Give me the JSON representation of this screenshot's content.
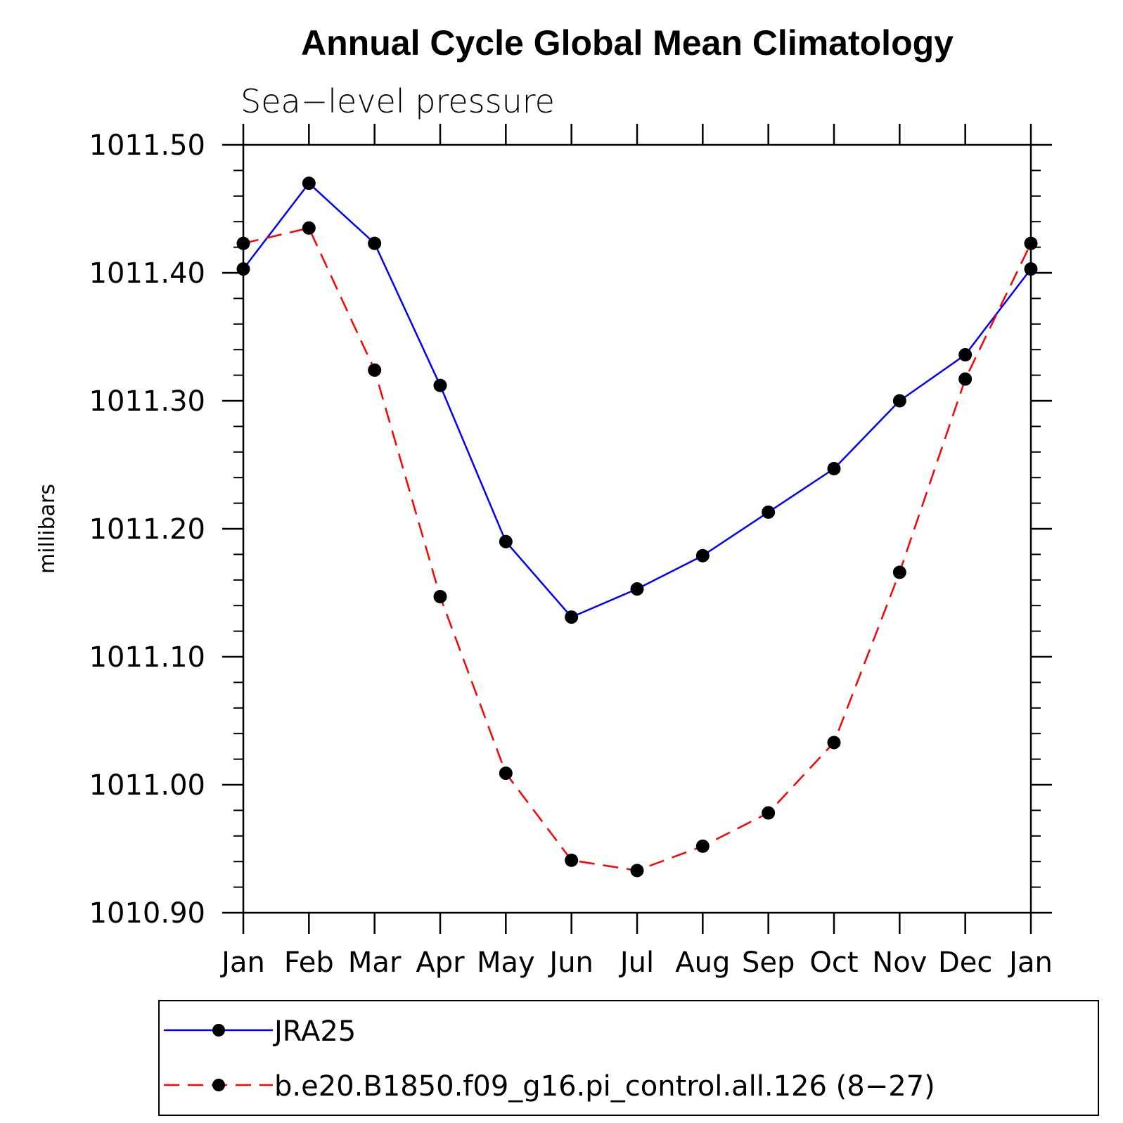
{
  "chart_data": {
    "type": "line",
    "title": "Annual Cycle Global Mean Climatology",
    "subtitle": "Sea−level pressure",
    "ylabel": "millibars",
    "xlabel": "",
    "categories": [
      "Jan",
      "Feb",
      "Mar",
      "Apr",
      "May",
      "Jun",
      "Jul",
      "Aug",
      "Sep",
      "Oct",
      "Nov",
      "Dec",
      "Jan"
    ],
    "ylim": [
      1010.9,
      1011.5
    ],
    "yticks": [
      "1010.90",
      "1011.00",
      "1011.10",
      "1011.20",
      "1011.30",
      "1011.40",
      "1011.50"
    ],
    "ytick_values": [
      1010.9,
      1011.0,
      1011.1,
      1011.2,
      1011.3,
      1011.4,
      1011.5
    ],
    "grid": false,
    "legend_position": "bottom",
    "series": [
      {
        "name": "JRA25",
        "color": "#0000ff",
        "dash": "solid",
        "marker": "filled-circle",
        "values": [
          1011.403,
          1011.47,
          1011.423,
          1011.312,
          1011.19,
          1011.131,
          1011.153,
          1011.179,
          1011.213,
          1011.247,
          1011.3,
          1011.336,
          1011.403
        ]
      },
      {
        "name": "b.e20.B1850.f09_g16.pi_control.all.126 (8−27)",
        "color": "#ff0000",
        "dash": "dashed",
        "marker": "filled-circle",
        "values": [
          1011.423,
          1011.435,
          1011.324,
          1011.147,
          1011.009,
          1010.941,
          1010.933,
          1010.952,
          1010.978,
          1011.033,
          1011.166,
          1011.317,
          1011.423
        ]
      }
    ]
  }
}
